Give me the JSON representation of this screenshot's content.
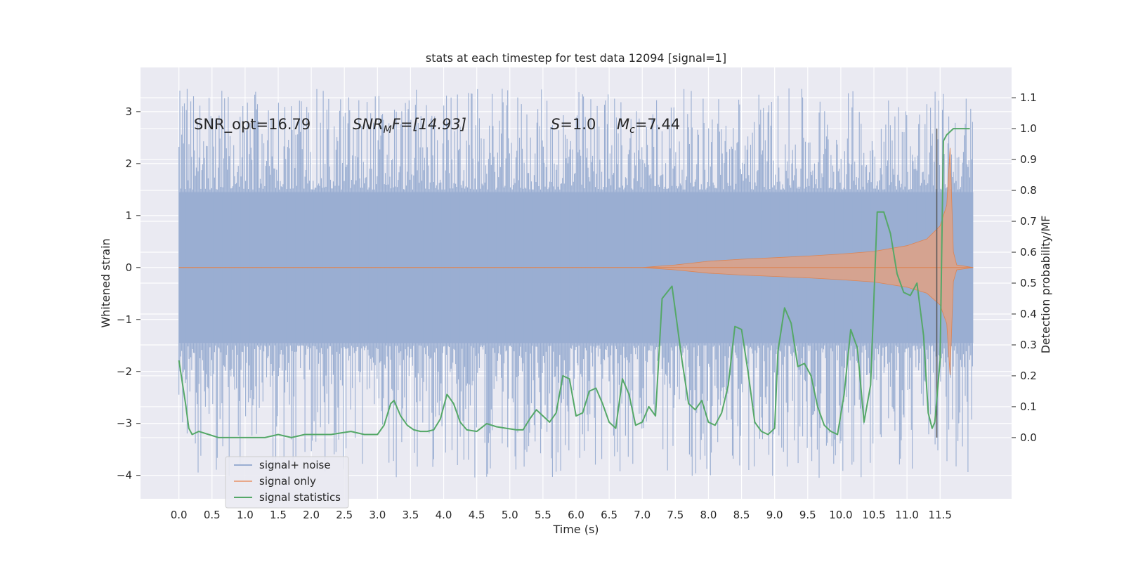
{
  "chart_data": {
    "type": "line",
    "title": "stats at each timestep for test data 12094 [signal=1]",
    "xlabel": "Time (s)",
    "ylabel": "Whitened strain",
    "y2label": "Detection probability/MF",
    "xlim": [
      -0.58,
      12.58
    ],
    "ylim": [
      -4.45,
      3.85
    ],
    "y2lim": [
      -0.198,
      1.198
    ],
    "x_ticks": [
      "0.0",
      "0.5",
      "1.0",
      "1.5",
      "2.0",
      "2.5",
      "3.0",
      "3.5",
      "4.0",
      "4.5",
      "5.0",
      "5.5",
      "6.0",
      "6.5",
      "7.0",
      "7.5",
      "8.0",
      "8.5",
      "9.0",
      "9.5",
      "10.0",
      "10.5",
      "11.0",
      "11.5"
    ],
    "y_ticks": [
      "3",
      "2",
      "1",
      "0",
      "−1",
      "−2",
      "−3",
      "−4"
    ],
    "y2_ticks": [
      "1.1",
      "1.0",
      "0.9",
      "0.8",
      "0.7",
      "0.6",
      "0.5",
      "0.4",
      "0.3",
      "0.2",
      "0.1",
      "0.0"
    ],
    "grid": true,
    "legend_position": "lower-left",
    "annotations": {
      "snr_opt": "SNR_opt=16.79",
      "snr_mf_name": "SNR",
      "snr_mf_sub": "M",
      "snr_mf_rest": "F=[14.93]",
      "s_name": "S",
      "s_value": "=1.0",
      "mc_name": "M",
      "mc_sub": "c",
      "mc_value": "=7.44"
    },
    "marker_line_x": 11.45,
    "colors": {
      "background": "#eaeaf2",
      "noise": "#9aaed2",
      "signal": "#dd8452",
      "stats": "#55a868",
      "marker": "#555555"
    },
    "series": [
      {
        "name": "signal+ noise",
        "axis": "left",
        "kind": "noise-band",
        "t_start": 0.0,
        "t_end": 12.0,
        "core_band": [
          -1.45,
          1.45
        ],
        "spike_max": 3.45,
        "spike_min": -4.05
      },
      {
        "name": "signal only",
        "axis": "left",
        "kind": "chirp-envelope",
        "t": [
          0.0,
          7.0,
          7.5,
          8.0,
          8.5,
          9.0,
          9.5,
          10.0,
          10.5,
          11.0,
          11.3,
          11.5,
          11.6,
          11.65,
          11.7,
          11.75,
          12.0
        ],
        "amplitude": [
          0.0,
          0.0,
          0.05,
          0.12,
          0.16,
          0.19,
          0.22,
          0.26,
          0.31,
          0.42,
          0.55,
          0.8,
          1.2,
          2.3,
          0.3,
          0.05,
          0.0
        ]
      },
      {
        "name": "signal statistics",
        "axis": "right",
        "kind": "line",
        "x": [
          0.0,
          0.1,
          0.15,
          0.2,
          0.3,
          0.45,
          0.6,
          0.75,
          0.9,
          1.1,
          1.3,
          1.5,
          1.7,
          1.9,
          2.1,
          2.3,
          2.45,
          2.6,
          2.8,
          3.0,
          3.1,
          3.2,
          3.25,
          3.35,
          3.45,
          3.55,
          3.65,
          3.75,
          3.85,
          3.95,
          4.05,
          4.15,
          4.25,
          4.35,
          4.5,
          4.65,
          4.8,
          4.95,
          5.1,
          5.2,
          5.3,
          5.4,
          5.5,
          5.6,
          5.7,
          5.8,
          5.9,
          6.0,
          6.1,
          6.2,
          6.3,
          6.4,
          6.5,
          6.6,
          6.7,
          6.8,
          6.9,
          7.0,
          7.1,
          7.2,
          7.3,
          7.45,
          7.6,
          7.7,
          7.8,
          7.9,
          8.0,
          8.1,
          8.2,
          8.3,
          8.4,
          8.5,
          8.6,
          8.7,
          8.8,
          8.9,
          9.0,
          9.05,
          9.15,
          9.25,
          9.35,
          9.45,
          9.55,
          9.65,
          9.75,
          9.85,
          9.95,
          10.05,
          10.15,
          10.25,
          10.35,
          10.45,
          10.55,
          10.65,
          10.75,
          10.85,
          10.95,
          11.05,
          11.15,
          11.25,
          11.32,
          11.38,
          11.42,
          11.5,
          11.55,
          11.6,
          11.7,
          11.85,
          11.95
        ],
        "y": [
          0.25,
          0.11,
          0.03,
          0.01,
          0.02,
          0.01,
          0.0,
          0.0,
          0.0,
          0.0,
          0.0,
          0.01,
          0.0,
          0.01,
          0.01,
          0.01,
          0.015,
          0.02,
          0.01,
          0.01,
          0.04,
          0.11,
          0.12,
          0.07,
          0.04,
          0.025,
          0.02,
          0.02,
          0.025,
          0.06,
          0.14,
          0.11,
          0.05,
          0.025,
          0.02,
          0.045,
          0.035,
          0.03,
          0.025,
          0.025,
          0.06,
          0.09,
          0.07,
          0.05,
          0.08,
          0.2,
          0.19,
          0.07,
          0.08,
          0.15,
          0.16,
          0.11,
          0.05,
          0.03,
          0.19,
          0.14,
          0.04,
          0.05,
          0.1,
          0.07,
          0.45,
          0.49,
          0.25,
          0.11,
          0.09,
          0.12,
          0.05,
          0.04,
          0.08,
          0.17,
          0.36,
          0.35,
          0.21,
          0.05,
          0.02,
          0.01,
          0.03,
          0.28,
          0.42,
          0.37,
          0.23,
          0.24,
          0.2,
          0.1,
          0.04,
          0.02,
          0.01,
          0.14,
          0.35,
          0.29,
          0.05,
          0.17,
          0.73,
          0.73,
          0.66,
          0.53,
          0.47,
          0.46,
          0.5,
          0.33,
          0.08,
          0.03,
          0.05,
          0.25,
          0.96,
          0.98,
          1.0,
          1.0,
          1.0
        ]
      }
    ]
  },
  "legend": {
    "noise_label": "signal+ noise",
    "signal_label": "signal only",
    "stats_label": "signal statistics"
  }
}
